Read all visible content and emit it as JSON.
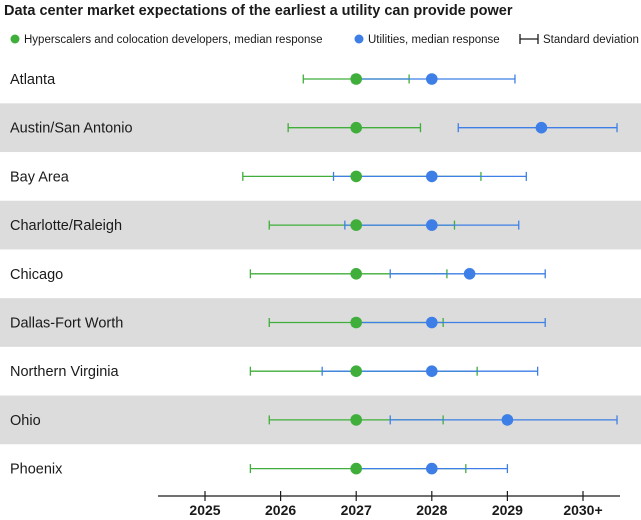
{
  "chart_data": {
    "type": "scatter",
    "title": "Data center market expectations of the earliest a utility can provide power",
    "legend": {
      "placement": "top",
      "items": [
        "Hyperscalers and colocation developers, median response",
        "Utilities, median response",
        "Standard deviation"
      ]
    },
    "xaxis": {
      "ticks": [
        2025,
        2026,
        2027,
        2028,
        2029,
        2030
      ],
      "tick_labels": [
        "2025",
        "2026",
        "2027",
        "2028",
        "2029",
        "2030+"
      ],
      "range": [
        2024.35,
        2030.45
      ]
    },
    "grid": false,
    "colors": {
      "hyperscalers": "#3fae3a",
      "utilities": "#3d7fe6",
      "band": "#dcdcdc",
      "axis": "#1a1a1a"
    },
    "series": [
      {
        "name": "Hyperscalers and colocation developers, median response",
        "color_key": "hyperscalers"
      },
      {
        "name": "Utilities, median response",
        "color_key": "utilities"
      }
    ],
    "rows": [
      {
        "label": "Atlanta",
        "hyper": {
          "median": 2027.0,
          "low": 2026.3,
          "high": 2027.7
        },
        "util": {
          "median": 2028.0,
          "low": 2026.95,
          "high": 2029.1
        }
      },
      {
        "label": "Austin/San Antonio",
        "hyper": {
          "median": 2027.0,
          "low": 2026.1,
          "high": 2027.85
        },
        "util": {
          "median": 2029.45,
          "low": 2028.35,
          "high": 2030.45
        }
      },
      {
        "label": "Bay Area",
        "hyper": {
          "median": 2027.0,
          "low": 2025.5,
          "high": 2028.65
        },
        "util": {
          "median": 2028.0,
          "low": 2026.7,
          "high": 2029.25
        }
      },
      {
        "label": "Charlotte/Raleigh",
        "hyper": {
          "median": 2027.0,
          "low": 2025.85,
          "high": 2028.3
        },
        "util": {
          "median": 2028.0,
          "low": 2026.85,
          "high": 2029.15
        }
      },
      {
        "label": "Chicago",
        "hyper": {
          "median": 2027.0,
          "low": 2025.6,
          "high": 2028.2
        },
        "util": {
          "median": 2028.5,
          "low": 2027.45,
          "high": 2029.5
        }
      },
      {
        "label": "Dallas-Fort Worth",
        "hyper": {
          "median": 2027.0,
          "low": 2025.85,
          "high": 2028.15
        },
        "util": {
          "median": 2028.0,
          "low": 2026.95,
          "high": 2029.5
        }
      },
      {
        "label": "Northern Virginia",
        "hyper": {
          "median": 2027.0,
          "low": 2025.6,
          "high": 2028.6
        },
        "util": {
          "median": 2028.0,
          "low": 2026.55,
          "high": 2029.4
        }
      },
      {
        "label": "Ohio",
        "hyper": {
          "median": 2027.0,
          "low": 2025.85,
          "high": 2028.15
        },
        "util": {
          "median": 2029.0,
          "low": 2027.45,
          "high": 2030.45
        }
      },
      {
        "label": "Phoenix",
        "hyper": {
          "median": 2027.0,
          "low": 2025.6,
          "high": 2028.45
        },
        "util": {
          "median": 2028.0,
          "low": 2027.0,
          "high": 2029.0
        }
      }
    ]
  }
}
